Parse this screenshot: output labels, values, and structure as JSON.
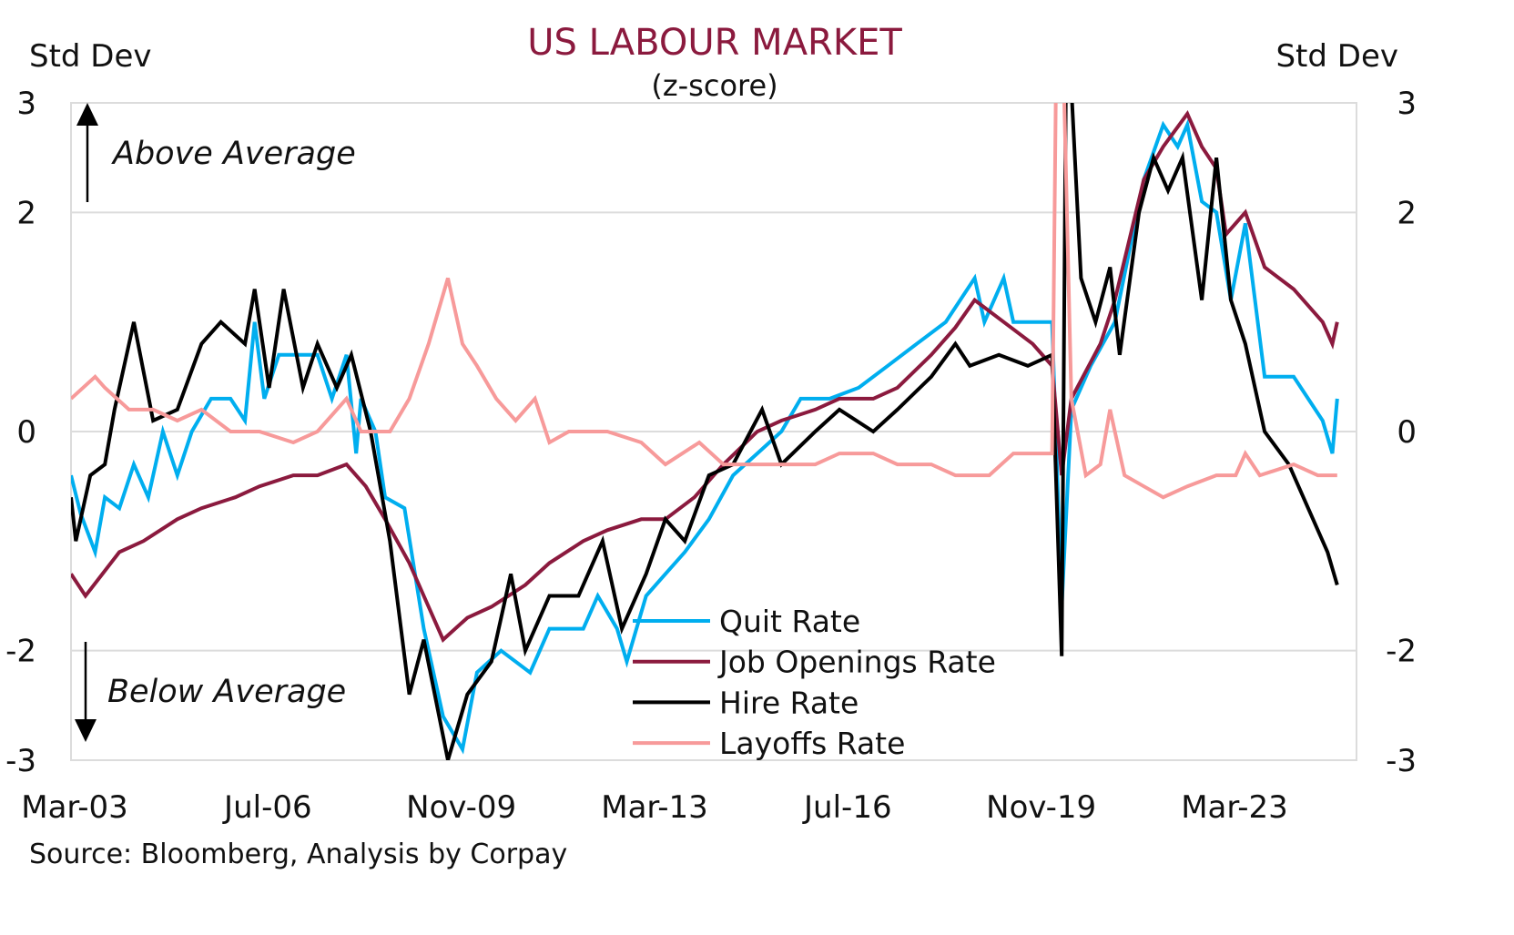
{
  "chart_data": {
    "type": "line",
    "title": "US LABOUR MARKET",
    "subtitle": "(z-score)",
    "ylabel_left": "Std Dev",
    "ylabel_right": "Std Dev",
    "ylim": [
      -3,
      3
    ],
    "yticks": [
      3,
      2,
      0,
      -2,
      -3
    ],
    "xlim": [
      "2003-03",
      "2025-05"
    ],
    "xticks": [
      {
        "date": "2003-03",
        "label": "Mar-03"
      },
      {
        "date": "2006-07",
        "label": "Jul-06"
      },
      {
        "date": "2009-11",
        "label": "Nov-09"
      },
      {
        "date": "2013-03",
        "label": "Mar-13"
      },
      {
        "date": "2016-07",
        "label": "Jul-16"
      },
      {
        "date": "2019-11",
        "label": "Nov-19"
      },
      {
        "date": "2023-03",
        "label": "Mar-23"
      }
    ],
    "grid": true,
    "legend_position": "bottom-center",
    "annotations": {
      "above": "Above Average",
      "below": "Below Average"
    },
    "source": "Source: Bloomberg, Analysis by Corpay",
    "colors": {
      "title": "#8B1A3E",
      "grid": "#DCDCDC"
    },
    "series": [
      {
        "name": "Quit Rate",
        "color": "#00AEEF",
        "points": [
          [
            "2003-03",
            -0.4
          ],
          [
            "2003-05",
            -0.75
          ],
          [
            "2003-08",
            -1.1
          ],
          [
            "2003-10",
            -0.6
          ],
          [
            "2004-01",
            -0.7
          ],
          [
            "2004-04",
            -0.3
          ],
          [
            "2004-07",
            -0.6
          ],
          [
            "2004-10",
            0.0
          ],
          [
            "2005-01",
            -0.4
          ],
          [
            "2005-04",
            0.0
          ],
          [
            "2005-08",
            0.3
          ],
          [
            "2005-12",
            0.3
          ],
          [
            "2006-03",
            0.1
          ],
          [
            "2006-05",
            1.0
          ],
          [
            "2006-07",
            0.3
          ],
          [
            "2006-10",
            0.7
          ],
          [
            "2007-06",
            0.7
          ],
          [
            "2007-09",
            0.3
          ],
          [
            "2007-12",
            0.7
          ],
          [
            "2008-02",
            -0.2
          ],
          [
            "2008-03",
            0.3
          ],
          [
            "2008-06",
            0.0
          ],
          [
            "2008-08",
            -0.6
          ],
          [
            "2008-12",
            -0.7
          ],
          [
            "2009-04",
            -1.8
          ],
          [
            "2009-08",
            -2.6
          ],
          [
            "2009-12",
            -2.9
          ],
          [
            "2010-03",
            -2.2
          ],
          [
            "2010-08",
            -2.0
          ],
          [
            "2011-02",
            -2.2
          ],
          [
            "2011-06",
            -1.8
          ],
          [
            "2012-01",
            -1.8
          ],
          [
            "2012-04",
            -1.5
          ],
          [
            "2012-08",
            -1.8
          ],
          [
            "2012-10",
            -2.1
          ],
          [
            "2013-02",
            -1.5
          ],
          [
            "2013-06",
            -1.3
          ],
          [
            "2013-10",
            -1.1
          ],
          [
            "2014-03",
            -0.8
          ],
          [
            "2014-08",
            -0.4
          ],
          [
            "2015-01",
            -0.2
          ],
          [
            "2015-06",
            0.0
          ],
          [
            "2015-10",
            0.3
          ],
          [
            "2016-04",
            0.3
          ],
          [
            "2016-10",
            0.4
          ],
          [
            "2017-04",
            0.6
          ],
          [
            "2017-10",
            0.8
          ],
          [
            "2018-04",
            1.0
          ],
          [
            "2018-10",
            1.4
          ],
          [
            "2018-12",
            1.0
          ],
          [
            "2019-04",
            1.4
          ],
          [
            "2019-06",
            1.0
          ],
          [
            "2020-02",
            1.0
          ],
          [
            "2020-04",
            -1.6
          ],
          [
            "2020-06",
            0.2
          ],
          [
            "2020-10",
            0.6
          ],
          [
            "2021-03",
            1.0
          ],
          [
            "2021-09",
            2.3
          ],
          [
            "2022-01",
            2.8
          ],
          [
            "2022-04",
            2.6
          ],
          [
            "2022-06",
            2.8
          ],
          [
            "2022-09",
            2.1
          ],
          [
            "2022-12",
            2.0
          ],
          [
            "2023-03",
            1.2
          ],
          [
            "2023-06",
            1.9
          ],
          [
            "2023-10",
            0.5
          ],
          [
            "2024-04",
            0.5
          ],
          [
            "2024-10",
            0.1
          ],
          [
            "2024-12",
            -0.2
          ],
          [
            "2025-01",
            0.3
          ]
        ]
      },
      {
        "name": "Job Openings Rate",
        "color": "#8B1A3E",
        "points": [
          [
            "2003-03",
            -1.3
          ],
          [
            "2003-06",
            -1.5
          ],
          [
            "2004-01",
            -1.1
          ],
          [
            "2004-06",
            -1.0
          ],
          [
            "2005-01",
            -0.8
          ],
          [
            "2005-06",
            -0.7
          ],
          [
            "2006-01",
            -0.6
          ],
          [
            "2006-06",
            -0.5
          ],
          [
            "2007-01",
            -0.4
          ],
          [
            "2007-06",
            -0.4
          ],
          [
            "2007-12",
            -0.3
          ],
          [
            "2008-04",
            -0.5
          ],
          [
            "2008-08",
            -0.8
          ],
          [
            "2009-01",
            -1.2
          ],
          [
            "2009-04",
            -1.5
          ],
          [
            "2009-08",
            -1.9
          ],
          [
            "2010-01",
            -1.7
          ],
          [
            "2010-06",
            -1.6
          ],
          [
            "2011-01",
            -1.4
          ],
          [
            "2011-06",
            -1.2
          ],
          [
            "2012-01",
            -1.0
          ],
          [
            "2012-06",
            -0.9
          ],
          [
            "2013-01",
            -0.8
          ],
          [
            "2013-06",
            -0.8
          ],
          [
            "2013-12",
            -0.6
          ],
          [
            "2014-06",
            -0.3
          ],
          [
            "2015-01",
            0.0
          ],
          [
            "2015-06",
            0.1
          ],
          [
            "2016-01",
            0.2
          ],
          [
            "2016-06",
            0.3
          ],
          [
            "2017-01",
            0.3
          ],
          [
            "2017-06",
            0.4
          ],
          [
            "2018-01",
            0.7
          ],
          [
            "2018-06",
            0.95
          ],
          [
            "2018-10",
            1.2
          ],
          [
            "2019-04",
            1.0
          ],
          [
            "2019-10",
            0.8
          ],
          [
            "2020-02",
            0.6
          ],
          [
            "2020-04",
            -0.4
          ],
          [
            "2020-06",
            0.3
          ],
          [
            "2020-12",
            0.8
          ],
          [
            "2021-03",
            1.2
          ],
          [
            "2021-09",
            2.3
          ],
          [
            "2022-01",
            2.6
          ],
          [
            "2022-06",
            2.9
          ],
          [
            "2022-09",
            2.6
          ],
          [
            "2022-12",
            2.4
          ],
          [
            "2023-02",
            1.8
          ],
          [
            "2023-06",
            2.0
          ],
          [
            "2023-10",
            1.5
          ],
          [
            "2024-04",
            1.3
          ],
          [
            "2024-10",
            1.0
          ],
          [
            "2024-12",
            0.8
          ],
          [
            "2025-01",
            1.0
          ]
        ]
      },
      {
        "name": "Hire Rate",
        "color": "#000000",
        "points": [
          [
            "2003-03",
            -0.6
          ],
          [
            "2003-04",
            -1.0
          ],
          [
            "2003-07",
            -0.4
          ],
          [
            "2003-10",
            -0.3
          ],
          [
            "2003-12",
            0.2
          ],
          [
            "2004-04",
            1.0
          ],
          [
            "2004-08",
            0.1
          ],
          [
            "2005-01",
            0.2
          ],
          [
            "2005-06",
            0.8
          ],
          [
            "2005-10",
            1.0
          ],
          [
            "2006-03",
            0.8
          ],
          [
            "2006-05",
            1.3
          ],
          [
            "2006-08",
            0.4
          ],
          [
            "2006-11",
            1.3
          ],
          [
            "2007-03",
            0.4
          ],
          [
            "2007-06",
            0.8
          ],
          [
            "2007-10",
            0.4
          ],
          [
            "2008-01",
            0.7
          ],
          [
            "2008-05",
            0.0
          ],
          [
            "2008-09",
            -1.0
          ],
          [
            "2009-01",
            -2.4
          ],
          [
            "2009-04",
            -1.9
          ],
          [
            "2009-09",
            -3.0
          ],
          [
            "2010-01",
            -2.4
          ],
          [
            "2010-06",
            -2.1
          ],
          [
            "2010-10",
            -1.3
          ],
          [
            "2011-01",
            -2.0
          ],
          [
            "2011-06",
            -1.5
          ],
          [
            "2011-12",
            -1.5
          ],
          [
            "2012-05",
            -1.0
          ],
          [
            "2012-09",
            -1.8
          ],
          [
            "2013-02",
            -1.3
          ],
          [
            "2013-06",
            -0.8
          ],
          [
            "2013-10",
            -1.0
          ],
          [
            "2014-03",
            -0.4
          ],
          [
            "2014-08",
            -0.3
          ],
          [
            "2015-02",
            0.2
          ],
          [
            "2015-06",
            -0.3
          ],
          [
            "2016-01",
            0.0
          ],
          [
            "2016-06",
            0.2
          ],
          [
            "2017-01",
            0.0
          ],
          [
            "2017-06",
            0.2
          ],
          [
            "2018-01",
            0.5
          ],
          [
            "2018-06",
            0.8
          ],
          [
            "2018-09",
            0.6
          ],
          [
            "2019-03",
            0.7
          ],
          [
            "2019-09",
            0.6
          ],
          [
            "2020-02",
            0.7
          ],
          [
            "2020-04",
            -2.05
          ],
          [
            "2020-05",
            4.0
          ],
          [
            "2020-08",
            1.4
          ],
          [
            "2020-11",
            1.0
          ],
          [
            "2021-02",
            1.5
          ],
          [
            "2021-04",
            0.7
          ],
          [
            "2021-08",
            2.0
          ],
          [
            "2021-11",
            2.5
          ],
          [
            "2022-02",
            2.2
          ],
          [
            "2022-05",
            2.5
          ],
          [
            "2022-09",
            1.2
          ],
          [
            "2022-12",
            2.5
          ],
          [
            "2023-03",
            1.2
          ],
          [
            "2023-06",
            0.8
          ],
          [
            "2023-10",
            0.0
          ],
          [
            "2024-03",
            -0.3
          ],
          [
            "2024-07",
            -0.7
          ],
          [
            "2024-11",
            -1.1
          ],
          [
            "2025-01",
            -1.4
          ]
        ]
      },
      {
        "name": "Layoffs Rate",
        "color": "#F79A9A",
        "points": [
          [
            "2003-03",
            0.3
          ],
          [
            "2003-08",
            0.5
          ],
          [
            "2003-10",
            0.4
          ],
          [
            "2004-03",
            0.2
          ],
          [
            "2004-08",
            0.2
          ],
          [
            "2005-01",
            0.1
          ],
          [
            "2005-06",
            0.2
          ],
          [
            "2005-12",
            0.0
          ],
          [
            "2006-06",
            0.0
          ],
          [
            "2007-01",
            -0.1
          ],
          [
            "2007-06",
            0.0
          ],
          [
            "2007-12",
            0.3
          ],
          [
            "2008-03",
            0.0
          ],
          [
            "2008-09",
            0.0
          ],
          [
            "2009-01",
            0.3
          ],
          [
            "2009-05",
            0.8
          ],
          [
            "2009-09",
            1.4
          ],
          [
            "2009-12",
            0.8
          ],
          [
            "2010-03",
            0.6
          ],
          [
            "2010-07",
            0.3
          ],
          [
            "2010-11",
            0.1
          ],
          [
            "2011-03",
            0.3
          ],
          [
            "2011-06",
            -0.1
          ],
          [
            "2011-10",
            0.0
          ],
          [
            "2012-06",
            0.0
          ],
          [
            "2013-01",
            -0.1
          ],
          [
            "2013-06",
            -0.3
          ],
          [
            "2014-01",
            -0.1
          ],
          [
            "2014-06",
            -0.3
          ],
          [
            "2015-01",
            -0.3
          ],
          [
            "2015-06",
            -0.3
          ],
          [
            "2016-01",
            -0.3
          ],
          [
            "2016-06",
            -0.2
          ],
          [
            "2017-01",
            -0.2
          ],
          [
            "2017-06",
            -0.3
          ],
          [
            "2018-01",
            -0.3
          ],
          [
            "2018-06",
            -0.4
          ],
          [
            "2019-01",
            -0.4
          ],
          [
            "2019-06",
            -0.2
          ],
          [
            "2020-02",
            -0.2
          ],
          [
            "2020-03",
            4.0
          ],
          [
            "2020-04",
            4.0
          ],
          [
            "2020-06",
            0.3
          ],
          [
            "2020-09",
            -0.4
          ],
          [
            "2020-12",
            -0.3
          ],
          [
            "2021-02",
            0.2
          ],
          [
            "2021-05",
            -0.4
          ],
          [
            "2021-09",
            -0.5
          ],
          [
            "2022-01",
            -0.6
          ],
          [
            "2022-06",
            -0.5
          ],
          [
            "2022-12",
            -0.4
          ],
          [
            "2023-04",
            -0.4
          ],
          [
            "2023-06",
            -0.2
          ],
          [
            "2023-09",
            -0.4
          ],
          [
            "2024-04",
            -0.3
          ],
          [
            "2024-09",
            -0.4
          ],
          [
            "2025-01",
            -0.4
          ]
        ]
      }
    ]
  }
}
